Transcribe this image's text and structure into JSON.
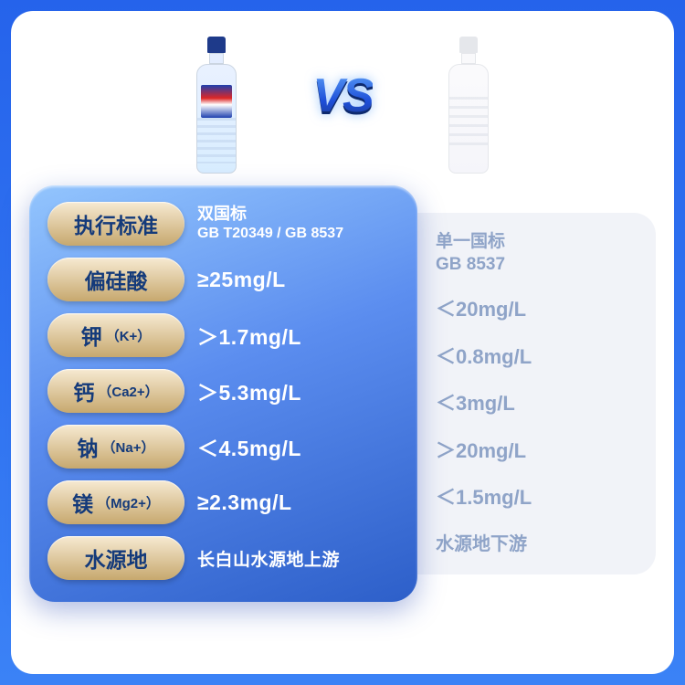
{
  "vs_text": "VS",
  "colors": {
    "page_bg_top": "#2563eb",
    "page_bg_bottom": "#3b82f6",
    "card_bg": "#ffffff",
    "blue_panel_top": "#93c5fd",
    "blue_panel_mid": "#5b8def",
    "blue_panel_bottom": "#2d5fc9",
    "gray_panel": "#f1f3f8",
    "pill_top": "#f7ead2",
    "pill_bottom": "#c7a86e",
    "pill_text": "#143a7a",
    "left_value_text": "#ffffff",
    "right_value_text": "#8fa4c8"
  },
  "rows": [
    {
      "label_main": "执行标准",
      "label_sub": "",
      "left_line1": "双国标",
      "left_line2": "GB T20349 / GB 8537",
      "right_line1": "单一国标",
      "right_line2": "GB 8537"
    },
    {
      "label_main": "偏硅酸",
      "label_sub": "",
      "left_value": "≥25mg/L",
      "right_value": "＜20mg/L"
    },
    {
      "label_main": "钾",
      "label_sub": "（K+）",
      "left_value": "＞1.7mg/L",
      "right_value": "＜0.8mg/L"
    },
    {
      "label_main": "钙",
      "label_sub": "（Ca2+）",
      "left_value": "＞5.3mg/L",
      "right_value": "＜3mg/L"
    },
    {
      "label_main": "钠",
      "label_sub": "（Na+）",
      "left_value": "＜4.5mg/L",
      "right_value": "＞20mg/L"
    },
    {
      "label_main": "镁",
      "label_sub": "（Mg2+）",
      "left_value": "≥2.3mg/L",
      "right_value": "＜1.5mg/L"
    },
    {
      "label_main": "水源地",
      "label_sub": "",
      "left_value": "长白山水源地上游",
      "right_value": "水源地下游"
    }
  ]
}
